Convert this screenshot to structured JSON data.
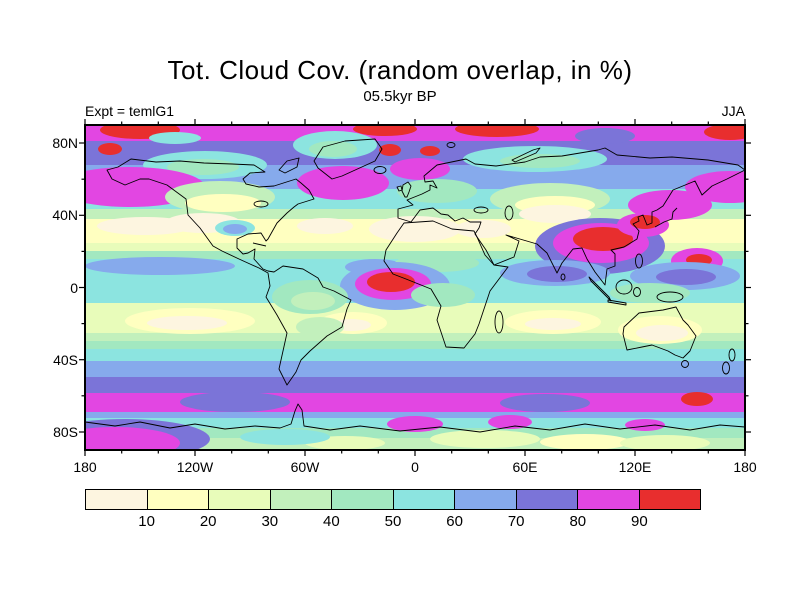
{
  "title": "Tot. Cloud Cov. (random overlap, in %)",
  "subtitle": "05.5kyr BP",
  "annotations": {
    "experiment": "Expt = temlG1",
    "season": "JJA"
  },
  "axes": {
    "x_ticks": [
      "180",
      "120W",
      "60W",
      "0",
      "60E",
      "120E",
      "180"
    ],
    "y_ticks": [
      "80N",
      "40N",
      "0",
      "40S",
      "80S"
    ]
  },
  "colorbar": {
    "levels": [
      "10",
      "20",
      "30",
      "40",
      "50",
      "60",
      "70",
      "80",
      "90"
    ],
    "colors": [
      "#fdf5e0",
      "#ffffc0",
      "#e8fcba",
      "#c2f0bc",
      "#a2e8c0",
      "#8ce4e0",
      "#86aaec",
      "#7b74d8",
      "#e246e2",
      "#e82e2e"
    ],
    "border_color": "#000000"
  },
  "chart_data": {
    "type": "heatmap",
    "variable": "Total cloud cover",
    "overlap_scheme": "random overlap",
    "units": "%",
    "experiment": "temlG1",
    "epoch": "05.5kyr BP",
    "season": "JJA",
    "projection": "cylindrical equidistant world map",
    "lon_domain": [
      -180,
      180
    ],
    "lat_domain": [
      -90,
      90
    ],
    "contour_levels": [
      10,
      20,
      30,
      40,
      50,
      60,
      70,
      80,
      90
    ],
    "palette": [
      "#fdf5e0",
      "#ffffc0",
      "#e8fcba",
      "#c2f0bc",
      "#a2e8c0",
      "#8ce4e0",
      "#86aaec",
      "#7b74d8",
      "#e246e2",
      "#e82e2e"
    ],
    "zonal_mean_estimate": {
      "lat": [
        85,
        70,
        60,
        50,
        40,
        30,
        20,
        10,
        0,
        -10,
        -20,
        -30,
        -40,
        -50,
        -60,
        -70,
        -80
      ],
      "cloud_pct": [
        85,
        75,
        70,
        65,
        55,
        25,
        35,
        55,
        60,
        40,
        25,
        45,
        65,
        75,
        85,
        55,
        40
      ]
    },
    "features": [
      {
        "name": "arctic-high-cloud-cap",
        "where": "75N-90N",
        "value_pct": "80-90, local >90"
      },
      {
        "name": "north-pacific-storm-track",
        "where": "45N-60N Pacific",
        "value_pct": "80-90"
      },
      {
        "name": "north-atlantic-storm-track",
        "where": "45N-60N Atlantic",
        "value_pct": "80-90"
      },
      {
        "name": "subtropical-desert-minimum",
        "where": "15N-35N Sahara / Arabia / SW North America / central Asia",
        "value_pct": "<10-20"
      },
      {
        "name": "asian-summer-monsoon-maximum",
        "where": "10N-30N, 80E-120E",
        "value_pct": ">90"
      },
      {
        "name": "gulf-of-guinea-maximum",
        "where": "10S-5N, 20W-10E Atlantic",
        "value_pct": ">90"
      },
      {
        "name": "southern-subtropical-ocean-minima",
        "where": "10S-30S ocean basins and Australia",
        "value_pct": "<10-20"
      },
      {
        "name": "southern-ocean-storm-track",
        "where": "45S-65S circumpolar",
        "value_pct": "80-90, local >90"
      },
      {
        "name": "antarctic-interior",
        "where": "75S-90S",
        "value_pct": "20-50"
      }
    ]
  }
}
